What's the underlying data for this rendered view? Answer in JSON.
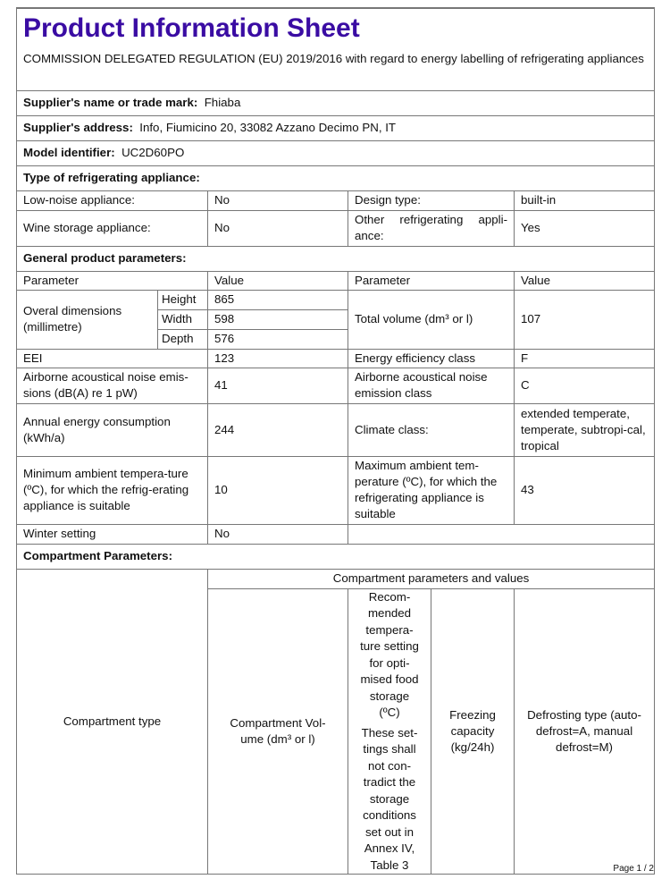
{
  "title": "Product Information Sheet",
  "regulation": "COMMISSION DELEGATED REGULATION (EU) 2019/2016 with regard to energy labelling of refrigerating appliances",
  "supplier": {
    "label": "Supplier's name or trade mark:",
    "value": "Fhiaba"
  },
  "address": {
    "label": "Supplier's address:",
    "value": "Info, Fiumicino 20, 33082 Azzano Decimo PN, IT"
  },
  "model": {
    "label": "Model identifier:",
    "value": "UC2D60PO"
  },
  "type_heading": "Type of refrigerating appliance:",
  "type_rows": [
    {
      "l1": "Low-noise appliance:",
      "v1": "No",
      "l2": "Design type:",
      "v2": "built-in"
    },
    {
      "l1": "Wine storage appliance:",
      "v1": "No",
      "l2": "Other refrigerating appli-ance:",
      "v2": "Yes"
    }
  ],
  "general_heading": "General product parameters:",
  "general_header": {
    "p1": "Parameter",
    "v1": "Value",
    "p2": "Parameter",
    "v2": "Value"
  },
  "dimensions": {
    "label": "Overal dimensions (millimetre)",
    "height_label": "Height",
    "height": "865",
    "width_label": "Width",
    "width": "598",
    "depth_label": "Depth",
    "depth": "576",
    "volume_label": "Total volume (dm³ or l)",
    "volume": "107"
  },
  "general_rows": [
    {
      "l1": "EEI",
      "v1": "123",
      "l2": "Energy efficiency class",
      "v2": "F"
    },
    {
      "l1": "Airborne acoustical noise emis-sions (dB(A) re 1 pW)",
      "v1": "41",
      "l2": "Airborne acoustical noise emission class",
      "v2": "C"
    },
    {
      "l1": "Annual energy consumption (kWh/a)",
      "v1": "244",
      "l2": "Climate class:",
      "v2": "extended temperate, temperate, subtropi-cal, tropical"
    },
    {
      "l1": "Minimum ambient tempera-ture (ºC), for which the refrig-erating appliance is suitable",
      "v1": "10",
      "l2": "Maximum ambient tem-perature (ºC), for which the refrigerating appliance is suitable",
      "v2": "43"
    }
  ],
  "winter": {
    "label": "Winter setting",
    "value": "No"
  },
  "compartment_heading": "Compartment Parameters:",
  "compartment": {
    "group_header": "Compartment parameters and values",
    "type": "Compartment type",
    "volume": "Compartment Vol-ume (dm³ or l)",
    "temperature": "Recom-mended tempera-ture setting for opti-mised food storage (ºC)",
    "temperature_note": "These set-tings shall not con-tradict the storage conditions set out in Annex IV, Table 3",
    "freezing": "Freezing capacity (kg/24h)",
    "defrost": "Defrosting type (auto-defrost=A, manual defrost=M)"
  },
  "footer": "Page 1 / 2"
}
